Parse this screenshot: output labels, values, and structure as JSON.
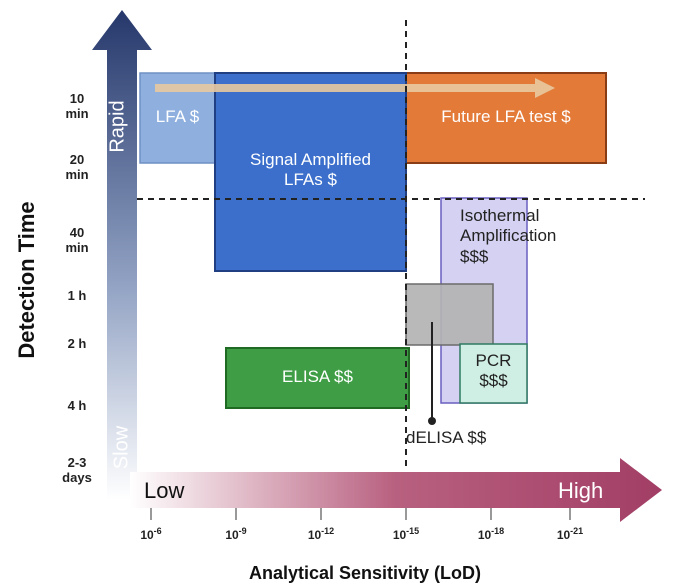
{
  "y_axis": {
    "title": "Detection Time",
    "arrow_top_label": "Rapid",
    "arrow_bottom_label": "Slow",
    "ticks": [
      {
        "line1": "10",
        "line2": "min"
      },
      {
        "line1": "20",
        "line2": "min"
      },
      {
        "line1": "40",
        "line2": "min"
      },
      {
        "line1": "1 h",
        "line2": ""
      },
      {
        "line1": "2 h",
        "line2": ""
      },
      {
        "line1": "4 h",
        "line2": ""
      },
      {
        "line1": "2-3",
        "line2": "days"
      }
    ]
  },
  "x_axis": {
    "title": "Analytical Sensitivity (LoD)",
    "arrow_left_label": "Low",
    "arrow_right_label": "High",
    "ticks": [
      {
        "base": "10",
        "exp": "-6"
      },
      {
        "base": "10",
        "exp": "-9"
      },
      {
        "base": "10",
        "exp": "-12"
      },
      {
        "base": "10",
        "exp": "-15"
      },
      {
        "base": "10",
        "exp": "-18"
      },
      {
        "base": "10",
        "exp": "-21"
      }
    ]
  },
  "regions": {
    "lfa": "LFA $",
    "future_lfa": "Future LFA test $",
    "signal_amplified": "Signal Amplified\nLFAs $",
    "isothermal": "Isothermal\nAmplification\n$$$",
    "elisa": "ELISA $$",
    "pcr": "PCR\n$$$",
    "delisa": "dELISA $$"
  },
  "colors": {
    "axis_arrow_dark": "#2b3a6b",
    "x_arrow_dark": "#a8456a",
    "lfa": "#8fb0de",
    "future_lfa": "#e37a38",
    "signal_amplified": "#3b6fcb",
    "isothermal": "#d4d1f2",
    "elisa": "#3f9e45",
    "pcr": "#cfeee4",
    "delisa": "#b3b3b3"
  }
}
